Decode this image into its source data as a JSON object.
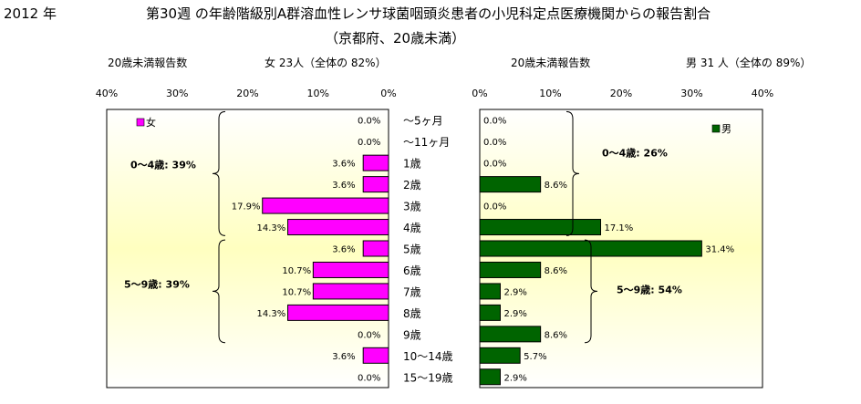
{
  "header": {
    "year": "2012 年",
    "title": "第30週 の年齢階級別A群溶血性レンサ球菌咽頭炎患者の小児科定点医療機関からの報告割合",
    "subtitle": "（京都府、20歳未満）"
  },
  "female_info": {
    "label": "20歳未満報告数",
    "summary": "女  23人（全体の  82%）"
  },
  "male_info": {
    "label": "20歳未満報告数",
    "summary": "男  31 人（全体の  89%）"
  },
  "chart_data": {
    "type": "bar",
    "categories": [
      "～5ヶ月",
      "～11ヶ月",
      "1歳",
      "2歳",
      "3歳",
      "4歳",
      "5歳",
      "6歳",
      "7歳",
      "8歳",
      "9歳",
      "10～14歳",
      "15～19歳"
    ],
    "xlim": [
      0,
      40
    ],
    "ticks": [
      "0%",
      "10%",
      "20%",
      "30%",
      "40%"
    ],
    "series": [
      {
        "name": "女",
        "color": "#ff00ff",
        "values": [
          0.0,
          0.0,
          3.6,
          3.6,
          17.9,
          14.3,
          3.6,
          10.7,
          10.7,
          14.3,
          0.0,
          3.6,
          0.0
        ],
        "labels": [
          "0.0%",
          "0.0%",
          "3.6%",
          "3.6%",
          "17.9%",
          "14.3%",
          "3.6%",
          "10.7%",
          "10.7%",
          "14.3%",
          "0.0%",
          "3.6%",
          "0.0%"
        ]
      },
      {
        "name": "男",
        "color": "#006400",
        "values": [
          0.0,
          0.0,
          0.0,
          8.6,
          0.0,
          17.1,
          31.4,
          8.6,
          2.9,
          2.9,
          8.6,
          5.7,
          2.9
        ],
        "labels": [
          "0.0%",
          "0.0%",
          "0.0%",
          "8.6%",
          "0.0%",
          "17.1%",
          "31.4%",
          "8.6%",
          "2.9%",
          "2.9%",
          "8.6%",
          "5.7%",
          "2.9%"
        ]
      }
    ],
    "annotations": {
      "female_0_4": "0～4歳:  39%",
      "female_5_9": "5～9歳:  39%",
      "male_0_4": "0～4歳:  26%",
      "male_5_9": "5～9歳:  54%"
    }
  }
}
